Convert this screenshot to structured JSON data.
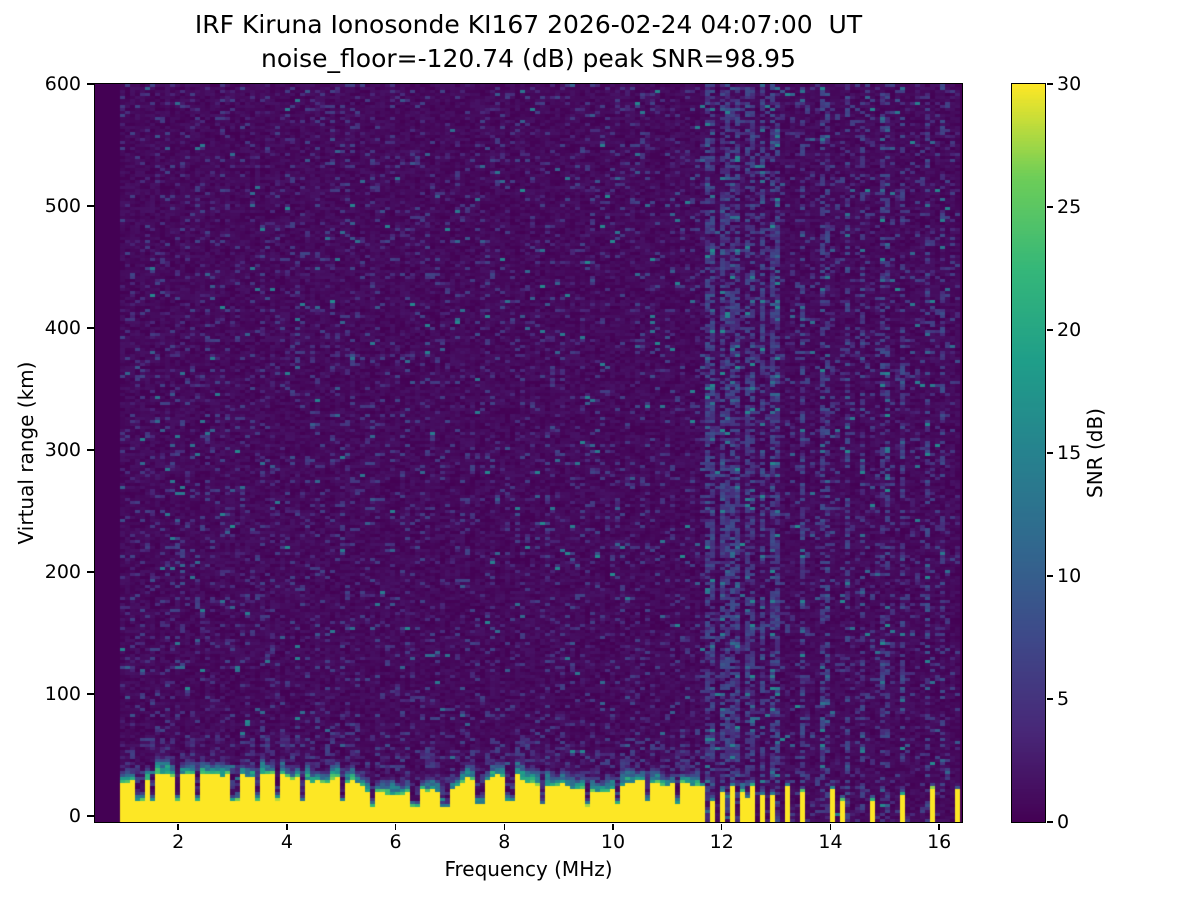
{
  "chart_data": {
    "type": "heatmap",
    "title": "IRF Kiruna Ionosonde KI167 2026-02-24 04:07:00  UT",
    "subtitle": "noise_floor=-120.74 (dB) peak SNR=98.95",
    "xlabel": "Frequency (MHz)",
    "ylabel": "Virtual range (km)",
    "xlim": [
      0.47,
      16.42
    ],
    "ylim": [
      -5,
      600
    ],
    "xticks": [
      2,
      4,
      6,
      8,
      10,
      12,
      14,
      16
    ],
    "yticks": [
      0,
      100,
      200,
      300,
      400,
      500,
      600
    ],
    "grid": false,
    "colorbar": {
      "label": "SNR (dB)",
      "min": 0,
      "max": 30,
      "ticks": [
        0,
        5,
        10,
        15,
        20,
        25,
        30
      ],
      "colormap": "viridis"
    },
    "colormap_anchors": [
      [
        0.0,
        "#440154"
      ],
      [
        0.125,
        "#482878"
      ],
      [
        0.25,
        "#3e4989"
      ],
      [
        0.375,
        "#31688e"
      ],
      [
        0.5,
        "#26828e"
      ],
      [
        0.625,
        "#1f9e89"
      ],
      [
        0.75,
        "#35b779"
      ],
      [
        0.875,
        "#6ece58"
      ],
      [
        1.0,
        "#fde725"
      ]
    ],
    "data_model": {
      "description": "Ionogram: dark viridis background with sparse teal noise speckles; strong saturated yellow ground-echo band at 0-30 km virtual range, continuous from 0.95 to 11.6 MHz then broken into short pulses; vertical RFI noise stripes above 11.6 MHz.",
      "seed": 167,
      "freq_start": 0.95,
      "freq_end": 16.35,
      "noise": {
        "background_snr_max": 1.7,
        "speckle_prob": 0.12,
        "speckle_snr_range": [
          2.2,
          7.0
        ],
        "hot_prob": 0.012,
        "hot_snr_range": [
          8,
          16
        ]
      },
      "echo_band": {
        "continuous_until_mhz": 11.6,
        "base_top_km": 29,
        "yellow_snr": 30,
        "taper_km": 14,
        "notch_freqs_mhz": [
          1.3,
          1.55,
          2.0,
          2.35,
          3.05,
          3.45,
          3.85,
          4.3,
          5.0,
          5.6,
          6.35,
          6.9,
          7.55,
          8.1,
          8.7,
          9.55,
          10.1,
          10.6,
          11.2
        ],
        "pulse_freqs_mhz": [
          11.62,
          11.8,
          11.98,
          12.16,
          12.34,
          12.52,
          12.72,
          12.97,
          13.25,
          13.45,
          14.0,
          14.25,
          14.8,
          15.35,
          15.85,
          16.3
        ]
      },
      "rfi_stripe_freqs_mhz": [
        11.7,
        11.85,
        12.0,
        12.15,
        12.3,
        12.45,
        12.6,
        12.75,
        12.9,
        13.05,
        13.5,
        13.9,
        14.35,
        14.6,
        15.0,
        15.35,
        15.75,
        16.1
      ]
    }
  }
}
